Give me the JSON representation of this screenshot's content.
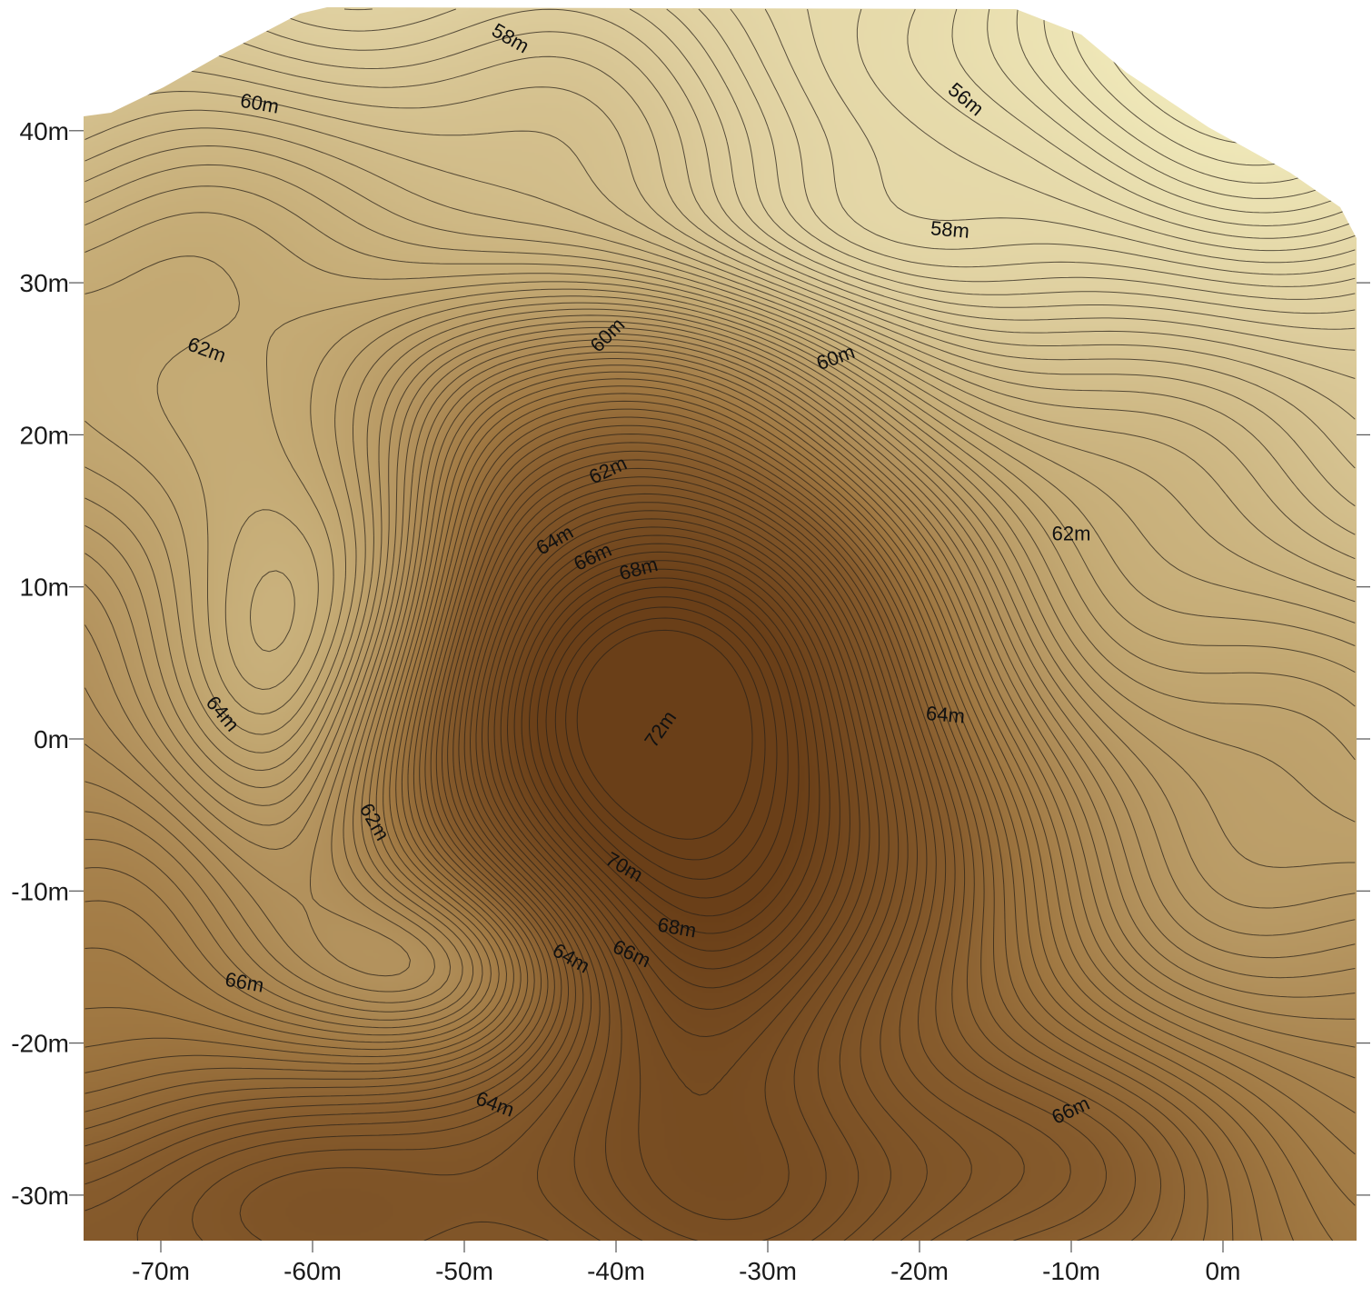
{
  "map": {
    "x_axis": {
      "ticks": [
        {
          "value": -70,
          "label": "-70m"
        },
        {
          "value": -60,
          "label": "-60m"
        },
        {
          "value": -50,
          "label": "-50m"
        },
        {
          "value": -40,
          "label": "-40m"
        },
        {
          "value": -30,
          "label": "-30m"
        },
        {
          "value": -20,
          "label": "-20m"
        },
        {
          "value": -10,
          "label": "-10m"
        },
        {
          "value": 0,
          "label": "0m"
        }
      ]
    },
    "y_axis": {
      "ticks": [
        {
          "value": 40,
          "label": "40m"
        },
        {
          "value": 30,
          "label": "30m"
        },
        {
          "value": 20,
          "label": "20m"
        },
        {
          "value": 10,
          "label": "10m"
        },
        {
          "value": 0,
          "label": "0m"
        },
        {
          "value": -10,
          "label": "-10m"
        },
        {
          "value": -20,
          "label": "-20m"
        },
        {
          "value": -30,
          "label": "-30m"
        }
      ]
    },
    "contour_labels": [
      {
        "text": "58m",
        "x": -47,
        "y": 46,
        "rot": 30
      },
      {
        "text": "60m",
        "x": -63.5,
        "y": 41.7,
        "rot": 10
      },
      {
        "text": "56m",
        "x": -17,
        "y": 42,
        "rot": 40
      },
      {
        "text": "58m",
        "x": -18,
        "y": 33.4,
        "rot": 5
      },
      {
        "text": "62m",
        "x": -67,
        "y": 25.5,
        "rot": 20
      },
      {
        "text": "60m",
        "x": -40.5,
        "y": 26.5,
        "rot": -45
      },
      {
        "text": "60m",
        "x": -25.5,
        "y": 25,
        "rot": -20
      },
      {
        "text": "62m",
        "x": -40.5,
        "y": 17.6,
        "rot": -25
      },
      {
        "text": "62m",
        "x": -10,
        "y": 13.4,
        "rot": 0
      },
      {
        "text": "64m",
        "x": -44,
        "y": 13,
        "rot": -30
      },
      {
        "text": "66m",
        "x": -41.5,
        "y": 11.9,
        "rot": -25
      },
      {
        "text": "68m",
        "x": -38.5,
        "y": 11.1,
        "rot": -15
      },
      {
        "text": "64m",
        "x": -66,
        "y": 1.6,
        "rot": 50
      },
      {
        "text": "64m",
        "x": -18.3,
        "y": 1.5,
        "rot": 5
      },
      {
        "text": "72m",
        "x": -37,
        "y": 0.6,
        "rot": -55
      },
      {
        "text": "62m",
        "x": -56,
        "y": -5.5,
        "rot": 60
      },
      {
        "text": "70m",
        "x": -39.5,
        "y": -8.5,
        "rot": 30
      },
      {
        "text": "68m",
        "x": -36,
        "y": -12.5,
        "rot": 10
      },
      {
        "text": "64m",
        "x": -43,
        "y": -14.5,
        "rot": 30
      },
      {
        "text": "66m",
        "x": -39,
        "y": -14.2,
        "rot": 25
      },
      {
        "text": "66m",
        "x": -64.5,
        "y": -16.1,
        "rot": 10
      },
      {
        "text": "64m",
        "x": -48,
        "y": -24.1,
        "rot": 20
      },
      {
        "text": "66m",
        "x": -10,
        "y": -24.5,
        "rot": -25
      }
    ],
    "colors": {
      "high": "#6b3f18",
      "low": "#f2ecbd",
      "line": "#2a2218"
    }
  }
}
